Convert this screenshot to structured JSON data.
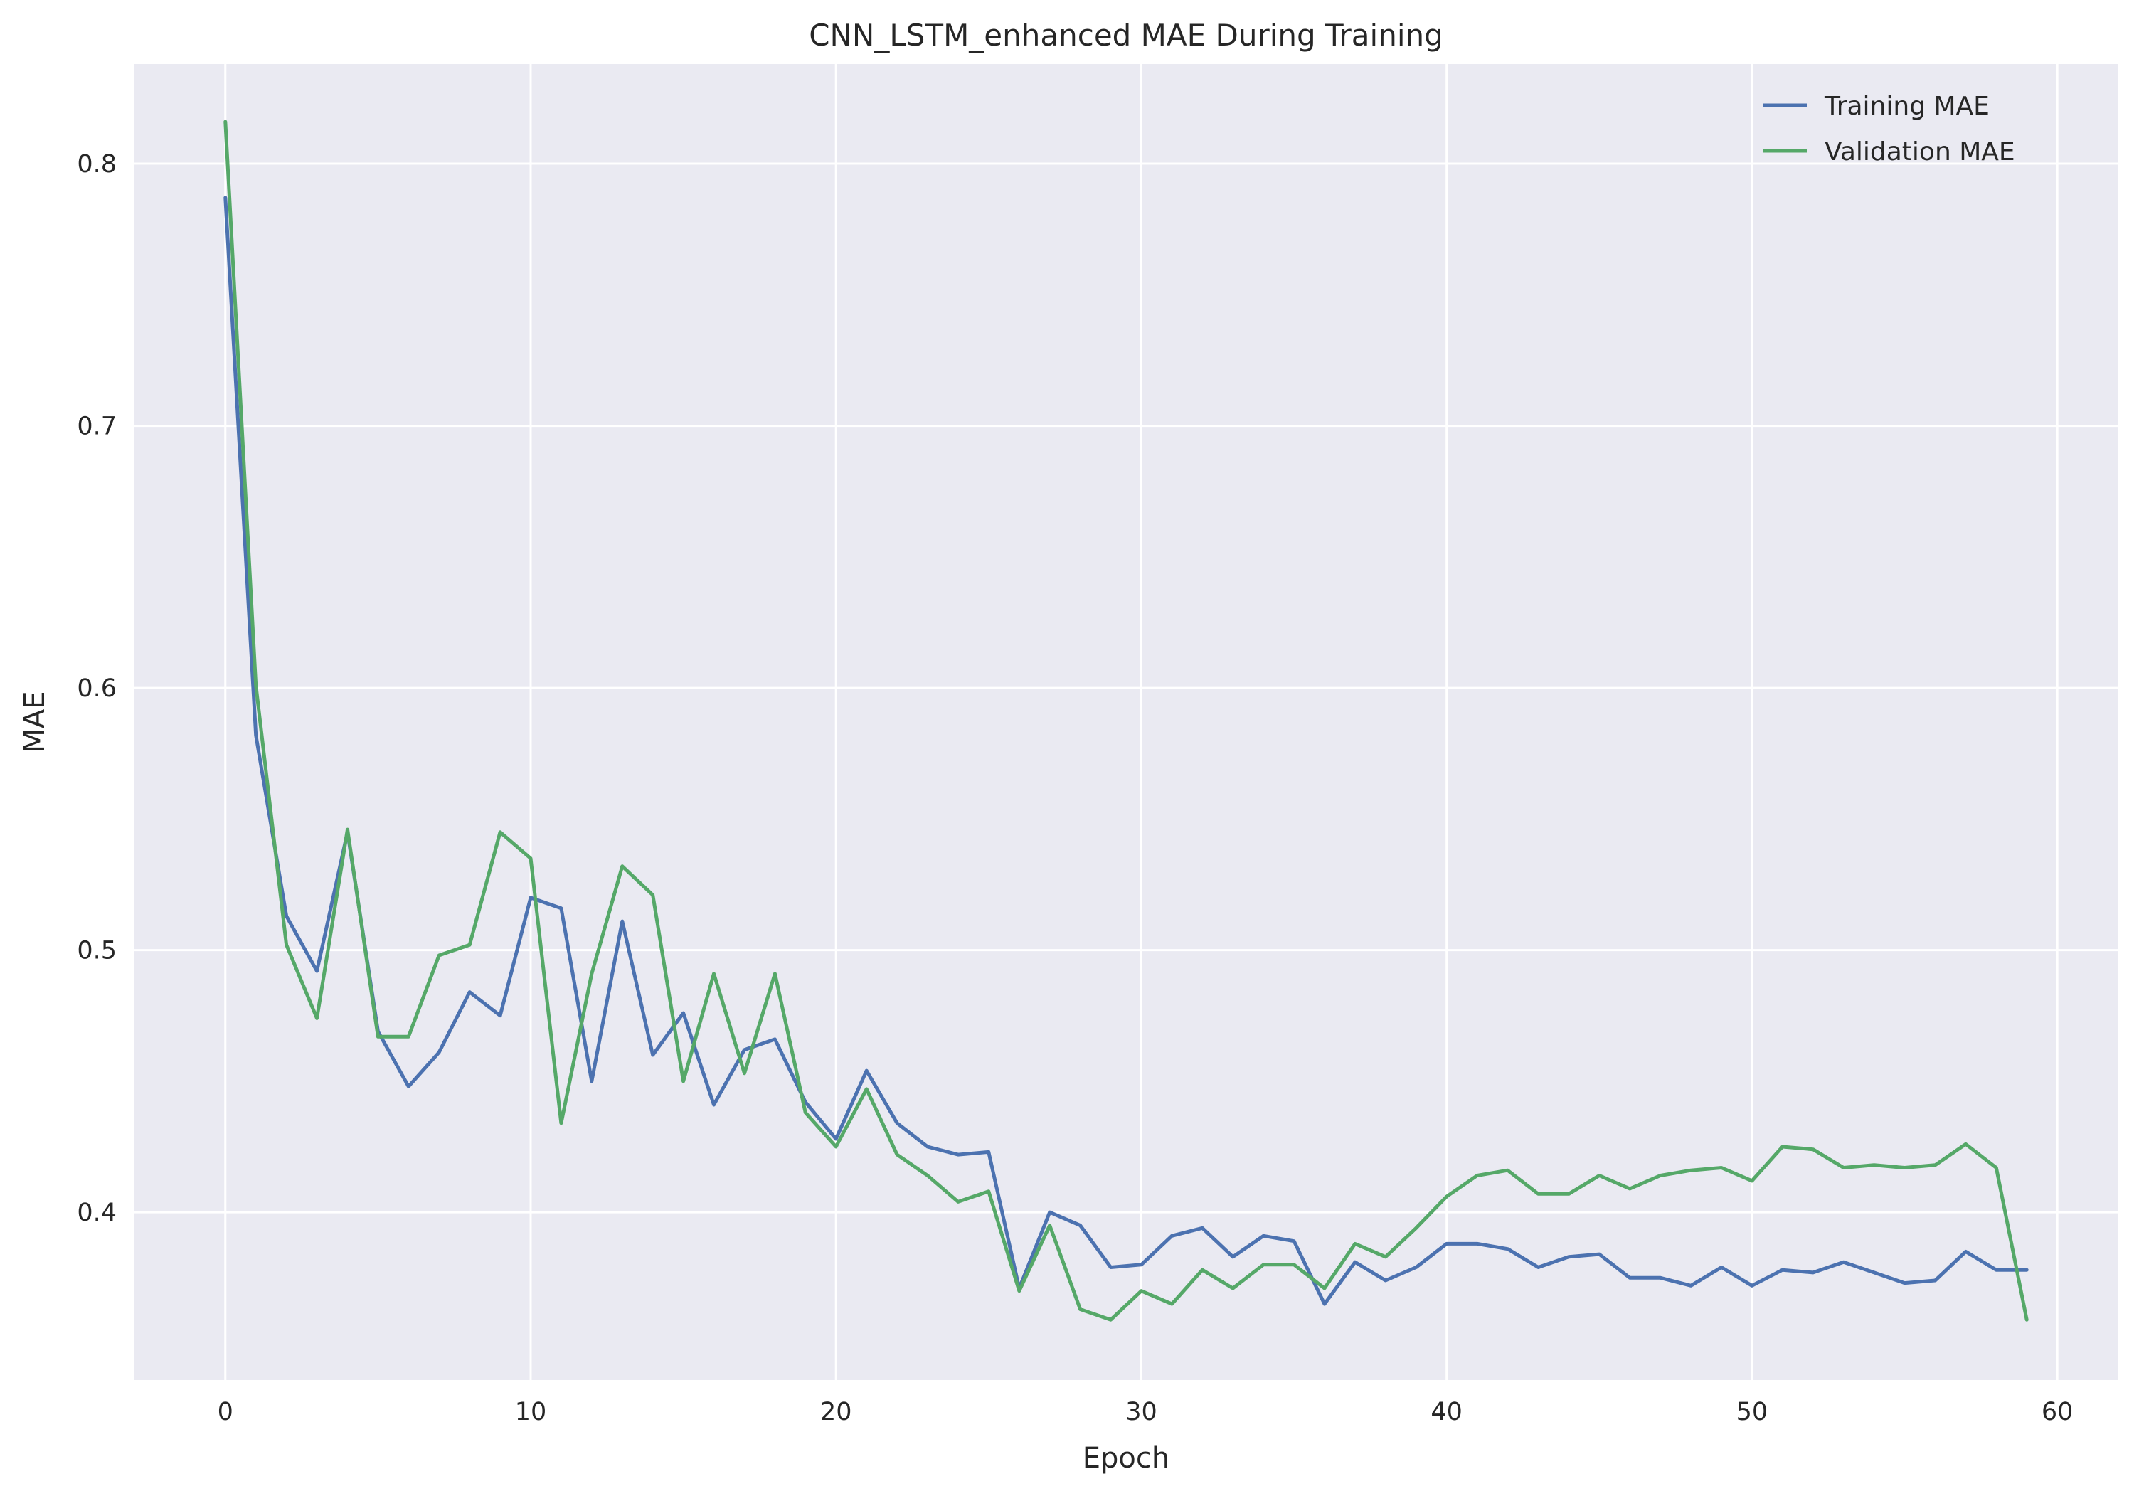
{
  "chart_data": {
    "type": "line",
    "title": "CNN_LSTM_enhanced MAE During Training",
    "xlabel": "Epoch",
    "ylabel": "MAE",
    "xlim": [
      -3,
      62
    ],
    "ylim": [
      0.336,
      0.838
    ],
    "xticks": [
      0,
      10,
      20,
      30,
      40,
      50,
      60
    ],
    "yticks": [
      0.4,
      0.5,
      0.6,
      0.7,
      0.8
    ],
    "grid": true,
    "legend_position": "top-right",
    "x": [
      0,
      1,
      2,
      3,
      4,
      5,
      6,
      7,
      8,
      9,
      10,
      11,
      12,
      13,
      14,
      15,
      16,
      17,
      18,
      19,
      20,
      21,
      22,
      23,
      24,
      25,
      26,
      27,
      28,
      29,
      30,
      31,
      32,
      33,
      34,
      35,
      36,
      37,
      38,
      39,
      40,
      41,
      42,
      43,
      44,
      45,
      46,
      47,
      48,
      49,
      50,
      51,
      52,
      53,
      54,
      55,
      56,
      57,
      58,
      59
    ],
    "series": [
      {
        "name": "Training MAE",
        "color": "#4c72b0",
        "values": [
          0.787,
          0.582,
          0.513,
          0.492,
          0.545,
          0.469,
          0.448,
          0.461,
          0.484,
          0.475,
          0.52,
          0.516,
          0.45,
          0.511,
          0.46,
          0.476,
          0.441,
          0.462,
          0.466,
          0.442,
          0.428,
          0.454,
          0.434,
          0.425,
          0.422,
          0.423,
          0.371,
          0.4,
          0.395,
          0.379,
          0.38,
          0.391,
          0.394,
          0.383,
          0.391,
          0.389,
          0.365,
          0.381,
          0.374,
          0.379,
          0.388,
          0.388,
          0.386,
          0.379,
          0.383,
          0.384,
          0.375,
          0.375,
          0.372,
          0.379,
          0.372,
          0.378,
          0.377,
          0.381,
          0.377,
          0.373,
          0.374,
          0.385,
          0.378,
          0.378
        ]
      },
      {
        "name": "Validation MAE",
        "color": "#55a868",
        "values": [
          0.816,
          0.601,
          0.502,
          0.474,
          0.546,
          0.467,
          0.467,
          0.498,
          0.502,
          0.545,
          0.535,
          0.434,
          0.491,
          0.532,
          0.521,
          0.45,
          0.491,
          0.453,
          0.491,
          0.438,
          0.425,
          0.447,
          0.422,
          0.414,
          0.404,
          0.408,
          0.37,
          0.395,
          0.363,
          0.359,
          0.37,
          0.365,
          0.378,
          0.371,
          0.38,
          0.38,
          0.371,
          0.388,
          0.383,
          0.394,
          0.406,
          0.414,
          0.416,
          0.407,
          0.407,
          0.414,
          0.409,
          0.414,
          0.416,
          0.417,
          0.412,
          0.425,
          0.424,
          0.417,
          0.418,
          0.417,
          0.418,
          0.426,
          0.417,
          0.359
        ]
      }
    ]
  }
}
